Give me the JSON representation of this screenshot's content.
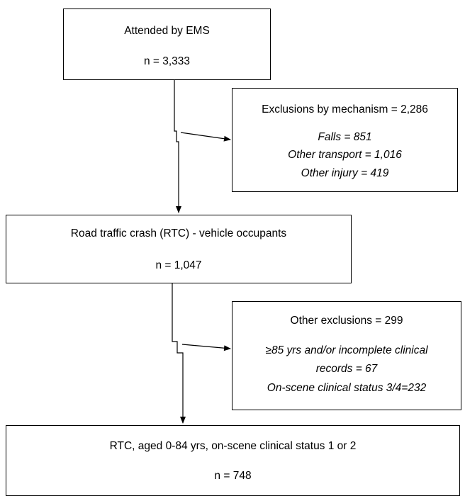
{
  "nodes": [
    {
      "label": "Attended by EMS",
      "count": "n = 3,333"
    },
    {
      "label": "Exclusions by mechanism = 2,286",
      "items": [
        "Falls = 851",
        "Other transport = 1,016",
        "Other injury = 419"
      ]
    },
    {
      "label": "Road traffic crash (RTC) - vehicle occupants",
      "count": "n = 1,047"
    },
    {
      "label": "Other exclusions = 299",
      "items": [
        "≥85 yrs and/or incomplete clinical",
        "records = 67",
        "On-scene clinical status 3/4=232"
      ]
    },
    {
      "label": "RTC, aged 0-84 yrs, on-scene clinical status 1 or 2",
      "count": "n = 748"
    }
  ]
}
